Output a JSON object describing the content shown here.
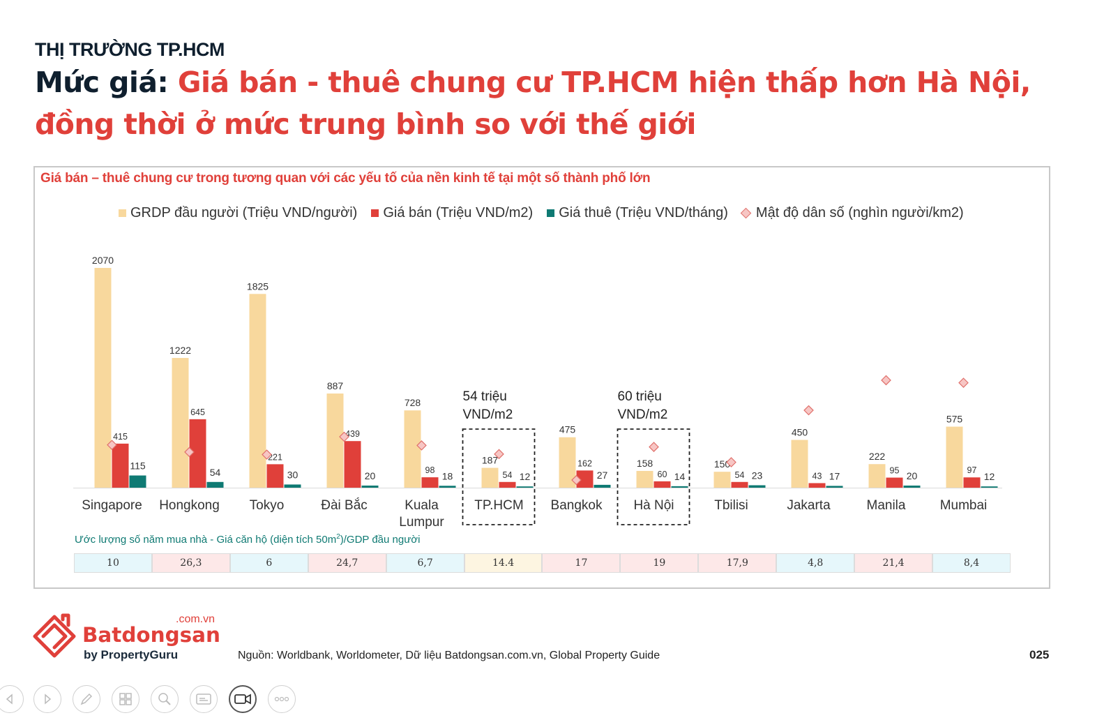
{
  "header": {
    "kicker": "THỊ TRƯỜNG TP.HCM",
    "headline_lead": "Mức giá: ",
    "headline_rest": "Giá bán - thuê chung cư TP.HCM hiện thấp hơn Hà Nội, đồng thời ở mức trung bình so với thế giới"
  },
  "chart_data": {
    "type": "bar",
    "title": "Giá bán – thuê chung cư trong tương quan với các yếu tố của nền kinh tế tại một số thành phố lớn",
    "categories": [
      "Singapore",
      "Hongkong",
      "Tokyo",
      "Đài Bắc",
      "Kuala Lumpur",
      "TP.HCM",
      "Bangkok",
      "Hà Nội",
      "Tbilisi",
      "Jakarta",
      "Manila",
      "Mumbai"
    ],
    "series": [
      {
        "name": "GRDP đầu người (Triệu VND/người)",
        "type": "bar",
        "color": "#f8d89d",
        "values": [
          2070,
          1222,
          1825,
          887,
          728,
          187,
          475,
          158,
          150,
          450,
          222,
          575
        ]
      },
      {
        "name": "Giá bán (Triệu VND/m2)",
        "type": "bar",
        "color": "#e0403a",
        "values": [
          415,
          645,
          221,
          439,
          98,
          54,
          162,
          60,
          54,
          43,
          95,
          97
        ]
      },
      {
        "name": "Giá thuê (Triệu VND/tháng)",
        "type": "bar",
        "color": "#0f7a73",
        "values": [
          115,
          54,
          30,
          20,
          18,
          12,
          27,
          14,
          23,
          17,
          20,
          12
        ]
      },
      {
        "name": "Mật độ dân số (nghìn người/km2)",
        "type": "scatter",
        "color": "#f7c6c4",
        "values": [
          8.4,
          7.0,
          6.5,
          10.0,
          8.3,
          6.6,
          1.5,
          8.0,
          5.0,
          15.2,
          21.1,
          20.6
        ]
      }
    ],
    "ylim": [
      0,
      2070
    ],
    "secondary_ylim": [
      0,
      30
    ],
    "grid": false,
    "legend": "top",
    "callouts": [
      {
        "category": "TP.HCM",
        "text_line1": "54 triệu",
        "text_line2": "VND/m2"
      },
      {
        "category": "Hà Nội",
        "text_line1": "60 triệu",
        "text_line2": "VND/m2"
      }
    ],
    "years_table": {
      "caption_prefix": "Ước lượng số năm mua nhà - Giá căn hộ (diện tích 50m",
      "caption_sup": "2",
      "caption_suffix": ")/GDP đầu người",
      "values": [
        "10",
        "26,3",
        "6",
        "24,7",
        "6,7",
        "14.4",
        "17",
        "19",
        "17,9",
        "4,8",
        "21,4",
        "8,4"
      ],
      "colors": [
        "#e6f7fb",
        "#fde8e8",
        "#e6f7fb",
        "#fde8e8",
        "#e6f7fb",
        "#fdf5e1",
        "#fde8e8",
        "#fde8e8",
        "#fde8e8",
        "#e6f7fb",
        "#fde8e8",
        "#e6f7fb"
      ]
    }
  },
  "footer": {
    "logo_domain": ".com.vn",
    "logo_name": "Batdongsan",
    "logo_sub": "by PropertyGuru",
    "source": "Nguồn: Worldbank, Worldometer, Dữ liệu Batdongsan.com.vn, Global Property Guide",
    "page_number": "025"
  },
  "toolbar": {
    "buttons": [
      "prev-icon",
      "next-icon",
      "pen-icon",
      "slides-icon",
      "zoom-icon",
      "subtitles-icon",
      "camera-icon",
      "more-icon"
    ]
  }
}
